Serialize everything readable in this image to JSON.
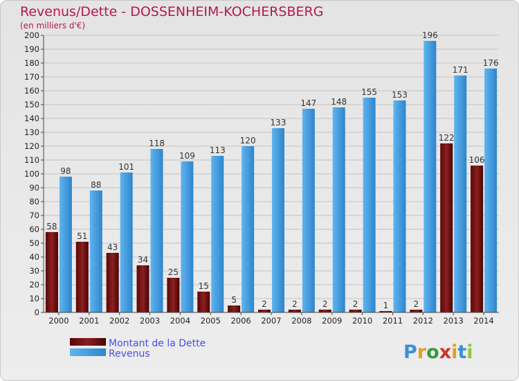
{
  "chart_data": {
    "type": "bar",
    "title": "Revenus/Dette - DOSSENHEIM-KOCHERSBERG",
    "subtitle": "(en milliers d'€)",
    "categories": [
      "2000",
      "2001",
      "2002",
      "2003",
      "2004",
      "2005",
      "2006",
      "2007",
      "2008",
      "2009",
      "2010",
      "2011",
      "2012",
      "2013",
      "2014"
    ],
    "series": [
      {
        "name": "Montant de la Dette",
        "color": "#8b1a1a",
        "values": [
          58,
          51,
          43,
          34,
          25,
          15,
          5,
          2,
          2,
          2,
          2,
          1,
          2,
          122,
          106
        ]
      },
      {
        "name": "Revenus",
        "color": "#3d9be0",
        "values": [
          98,
          88,
          101,
          118,
          109,
          113,
          120,
          133,
          147,
          148,
          155,
          153,
          196,
          171,
          176
        ]
      }
    ],
    "ylim": [
      0,
      200
    ],
    "yticks": [
      0,
      10,
      20,
      30,
      40,
      50,
      60,
      70,
      80,
      90,
      100,
      110,
      120,
      130,
      140,
      150,
      160,
      170,
      180,
      190,
      200
    ],
    "grid": true,
    "legend_position": "bottom-left"
  },
  "logo": {
    "letters": [
      "P",
      "r",
      "o",
      "x",
      "i",
      "t",
      "i"
    ],
    "colors": [
      "#3a8fd8",
      "#e0a020",
      "#3a9a3a",
      "#d03030",
      "#e0a020",
      "#3a8fd8",
      "#8cc63f"
    ]
  }
}
